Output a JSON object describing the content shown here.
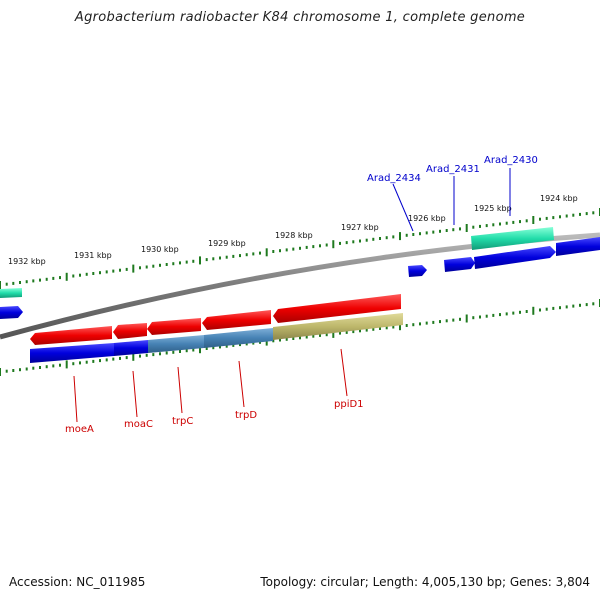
{
  "title": "Agrobacterium radiobacter K84 chromosome 1, complete genome",
  "footer": {
    "accession": "Accession: NC_011985",
    "summary": "Topology: circular; Length: 4,005,130 bp; Genes: 3,804"
  },
  "ruler_labels": [
    "1932 kbp",
    "1931 kbp",
    "1930 kbp",
    "1929 kbp",
    "1928 kbp",
    "1927 kbp",
    "1926 kbp",
    "1925 kbp",
    "1924 kbp"
  ],
  "top_gene_labels": [
    "Arad_2434",
    "Arad_2431",
    "Arad_2430"
  ],
  "bottom_gene_labels": [
    "moeA",
    "moaC",
    "trpC",
    "trpD",
    "ppiD1"
  ],
  "colors": {
    "backbone": "#8a8a8a",
    "tick": "#1f7a1f",
    "gene_forward": "#0000ee",
    "gene_reverse": "#ee0000",
    "cds_forward": "#0000dd",
    "rna_cyan": "#22ddaa",
    "steel": "#4682b4",
    "khaki": "#bdb76b",
    "label_blue": "#0000cc",
    "label_red": "#cc0000"
  }
}
